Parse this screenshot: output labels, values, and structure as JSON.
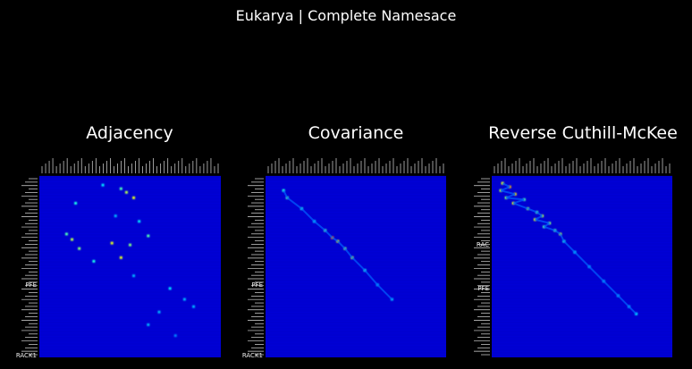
{
  "figure": {
    "title": "Eukarya | Complete Namesace"
  },
  "chart_data": [
    {
      "type": "heatmap",
      "title": "Adjacency",
      "colormap": "jet",
      "background": "#000000",
      "visible_tick_labels": [
        "PFE",
        "RACK1"
      ],
      "hotspots": [
        {
          "row": 0.05,
          "col": 0.35,
          "v": 0.35
        },
        {
          "row": 0.07,
          "col": 0.45,
          "v": 0.45
        },
        {
          "row": 0.09,
          "col": 0.48,
          "v": 0.55
        },
        {
          "row": 0.12,
          "col": 0.52,
          "v": 0.6
        },
        {
          "row": 0.15,
          "col": 0.2,
          "v": 0.4
        },
        {
          "row": 0.22,
          "col": 0.42,
          "v": 0.3
        },
        {
          "row": 0.25,
          "col": 0.55,
          "v": 0.35
        },
        {
          "row": 0.32,
          "col": 0.15,
          "v": 0.45
        },
        {
          "row": 0.35,
          "col": 0.18,
          "v": 0.55
        },
        {
          "row": 0.37,
          "col": 0.4,
          "v": 0.6
        },
        {
          "row": 0.38,
          "col": 0.5,
          "v": 0.5
        },
        {
          "row": 0.4,
          "col": 0.22,
          "v": 0.5
        },
        {
          "row": 0.33,
          "col": 0.6,
          "v": 0.45
        },
        {
          "row": 0.45,
          "col": 0.45,
          "v": 0.6
        },
        {
          "row": 0.47,
          "col": 0.3,
          "v": 0.4
        },
        {
          "row": 0.55,
          "col": 0.52,
          "v": 0.3
        },
        {
          "row": 0.62,
          "col": 0.72,
          "v": 0.35
        },
        {
          "row": 0.68,
          "col": 0.8,
          "v": 0.3
        },
        {
          "row": 0.72,
          "col": 0.85,
          "v": 0.3
        },
        {
          "row": 0.75,
          "col": 0.66,
          "v": 0.3
        },
        {
          "row": 0.82,
          "col": 0.6,
          "v": 0.3
        },
        {
          "row": 0.88,
          "col": 0.75,
          "v": 0.25
        }
      ]
    },
    {
      "type": "heatmap",
      "title": "Covariance",
      "colormap": "jet",
      "background": "#000000",
      "visible_tick_labels": [
        "PFE",
        "RACK1"
      ],
      "hotspots": [
        {
          "row": 0.08,
          "col": 0.1,
          "v": 0.4
        },
        {
          "row": 0.12,
          "col": 0.12,
          "v": 0.45
        },
        {
          "row": 0.18,
          "col": 0.2,
          "v": 0.4
        },
        {
          "row": 0.25,
          "col": 0.27,
          "v": 0.35
        },
        {
          "row": 0.3,
          "col": 0.33,
          "v": 0.45
        },
        {
          "row": 0.34,
          "col": 0.37,
          "v": 0.75
        },
        {
          "row": 0.36,
          "col": 0.4,
          "v": 0.6
        },
        {
          "row": 0.4,
          "col": 0.44,
          "v": 0.5
        },
        {
          "row": 0.45,
          "col": 0.48,
          "v": 0.55
        },
        {
          "row": 0.52,
          "col": 0.55,
          "v": 0.4
        },
        {
          "row": 0.6,
          "col": 0.62,
          "v": 0.3
        },
        {
          "row": 0.68,
          "col": 0.7,
          "v": 0.3
        }
      ]
    },
    {
      "type": "heatmap",
      "title": "Reverse Cuthill-McKee",
      "colormap": "jet",
      "background": "#000000",
      "visible_tick_labels": [
        "RAC",
        "PFE"
      ],
      "hotspots": [
        {
          "row": 0.04,
          "col": 0.06,
          "v": 0.6
        },
        {
          "row": 0.06,
          "col": 0.1,
          "v": 0.7
        },
        {
          "row": 0.08,
          "col": 0.05,
          "v": 0.55
        },
        {
          "row": 0.1,
          "col": 0.13,
          "v": 0.65
        },
        {
          "row": 0.12,
          "col": 0.08,
          "v": 0.5
        },
        {
          "row": 0.13,
          "col": 0.18,
          "v": 0.45
        },
        {
          "row": 0.15,
          "col": 0.12,
          "v": 0.6
        },
        {
          "row": 0.18,
          "col": 0.2,
          "v": 0.5
        },
        {
          "row": 0.2,
          "col": 0.25,
          "v": 0.45
        },
        {
          "row": 0.22,
          "col": 0.28,
          "v": 0.55
        },
        {
          "row": 0.24,
          "col": 0.24,
          "v": 0.6
        },
        {
          "row": 0.26,
          "col": 0.32,
          "v": 0.5
        },
        {
          "row": 0.28,
          "col": 0.29,
          "v": 0.45
        },
        {
          "row": 0.3,
          "col": 0.35,
          "v": 0.45
        },
        {
          "row": 0.32,
          "col": 0.38,
          "v": 0.55
        },
        {
          "row": 0.36,
          "col": 0.4,
          "v": 0.4
        },
        {
          "row": 0.42,
          "col": 0.46,
          "v": 0.35
        },
        {
          "row": 0.5,
          "col": 0.54,
          "v": 0.3
        },
        {
          "row": 0.58,
          "col": 0.62,
          "v": 0.3
        },
        {
          "row": 0.66,
          "col": 0.7,
          "v": 0.3
        },
        {
          "row": 0.72,
          "col": 0.76,
          "v": 0.3
        },
        {
          "row": 0.76,
          "col": 0.8,
          "v": 0.35
        }
      ]
    }
  ]
}
